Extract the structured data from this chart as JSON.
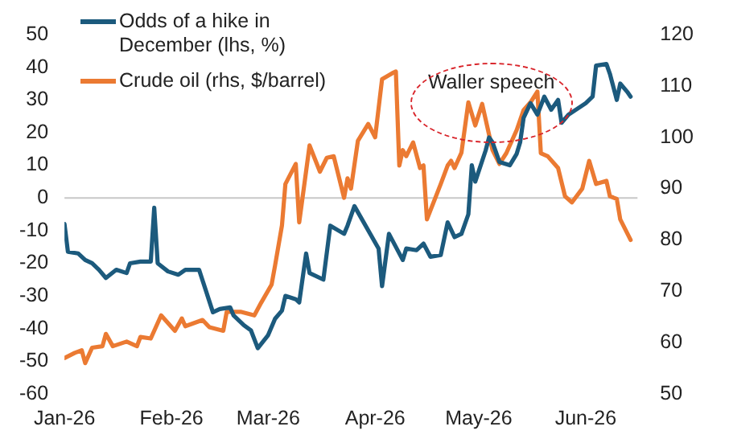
{
  "chart_data": {
    "type": "line",
    "series": [
      {
        "name": "Odds of a hike in December (lhs, %)",
        "color": "#1c5a7d",
        "axis": "y",
        "x": [
          "2026-01-01",
          "2026-01-02",
          "2026-01-05",
          "2026-01-07",
          "2026-01-09",
          "2026-01-11",
          "2026-01-13",
          "2026-01-16",
          "2026-01-19",
          "2026-01-20",
          "2026-01-23",
          "2026-01-26",
          "2026-01-27",
          "2026-01-28",
          "2026-01-31",
          "2026-02-03",
          "2026-02-05",
          "2026-02-09",
          "2026-02-13",
          "2026-02-15",
          "2026-02-18",
          "2026-02-19",
          "2026-02-22",
          "2026-02-24",
          "2026-02-26",
          "2026-03-01",
          "2026-03-03",
          "2026-03-05",
          "2026-03-06",
          "2026-03-09",
          "2026-03-10",
          "2026-03-12",
          "2026-03-13",
          "2026-03-17",
          "2026-03-19",
          "2026-03-23",
          "2026-03-24",
          "2026-03-26",
          "2026-04-02",
          "2026-04-03",
          "2026-04-05",
          "2026-04-09",
          "2026-04-10",
          "2026-04-13",
          "2026-04-15",
          "2026-04-17",
          "2026-04-20",
          "2026-04-22",
          "2026-04-24",
          "2026-04-26",
          "2026-04-28",
          "2026-04-29",
          "2026-04-30",
          "2026-05-03",
          "2026-05-04",
          "2026-05-05",
          "2026-05-07",
          "2026-05-10",
          "2026-05-12",
          "2026-05-13",
          "2026-05-14",
          "2026-05-16",
          "2026-05-18",
          "2026-05-20",
          "2026-05-22",
          "2026-05-24",
          "2026-05-25",
          "2026-05-27",
          "2026-06-01",
          "2026-06-03",
          "2026-06-04",
          "2026-06-07",
          "2026-06-08",
          "2026-06-10",
          "2026-06-11",
          "2026-06-13",
          "2026-06-14"
        ],
        "values": [
          -8,
          -16.5,
          -17,
          -19,
          -20,
          -22,
          -24.5,
          -22,
          -23,
          -20,
          -19.5,
          -19.5,
          -3,
          -20,
          -22.5,
          -23.5,
          -22,
          -22,
          -35,
          -34,
          -33.5,
          -36,
          -39,
          -40.5,
          -46,
          -42,
          -37,
          -34.5,
          -30,
          -31,
          -32,
          -17,
          -23,
          -25,
          -8.5,
          -11,
          -8.5,
          -2.5,
          -15.5,
          -27,
          -11,
          -19,
          -15.5,
          -16,
          -14,
          -18,
          -17.5,
          -7.5,
          -12,
          -11,
          -5,
          10,
          5,
          14.5,
          18.5,
          17,
          11,
          10,
          13.5,
          17,
          24.5,
          29,
          25.5,
          31,
          27,
          30,
          23,
          25.5,
          29,
          31,
          40.5,
          41,
          38,
          30,
          35,
          32.5,
          31
        ]
      },
      {
        "name": "Crude oil (rhs, $/barrel)",
        "color": "#eb7a32",
        "axis": "y2",
        "x": [
          "2026-01-01",
          "2026-01-04",
          "2026-01-06",
          "2026-01-07",
          "2026-01-09",
          "2026-01-12",
          "2026-01-13",
          "2026-01-15",
          "2026-01-19",
          "2026-01-22",
          "2026-01-23",
          "2026-01-26",
          "2026-01-29",
          "2026-02-02",
          "2026-02-04",
          "2026-02-05",
          "2026-02-10",
          "2026-02-12",
          "2026-02-16",
          "2026-02-17",
          "2026-02-21",
          "2026-02-25",
          "2026-02-27",
          "2026-03-02",
          "2026-03-03",
          "2026-03-05",
          "2026-03-06",
          "2026-03-09",
          "2026-03-10",
          "2026-03-13",
          "2026-03-16",
          "2026-03-18",
          "2026-03-20",
          "2026-03-23",
          "2026-03-24",
          "2026-03-25",
          "2026-03-27",
          "2026-03-30",
          "2026-04-01",
          "2026-04-03",
          "2026-04-06",
          "2026-04-07",
          "2026-04-08",
          "2026-04-09",
          "2026-04-10",
          "2026-04-12",
          "2026-04-14",
          "2026-04-15",
          "2026-04-16",
          "2026-04-20",
          "2026-04-22",
          "2026-04-23",
          "2026-04-24",
          "2026-04-26",
          "2026-04-28",
          "2026-04-30",
          "2026-05-02",
          "2026-05-05",
          "2026-05-07",
          "2026-05-09",
          "2026-05-12",
          "2026-05-14",
          "2026-05-16",
          "2026-05-18",
          "2026-05-19",
          "2026-05-21",
          "2026-05-24",
          "2026-05-26",
          "2026-05-28",
          "2026-05-31",
          "2026-06-02",
          "2026-06-04",
          "2026-06-07",
          "2026-06-08",
          "2026-06-10",
          "2026-06-11",
          "2026-06-14"
        ],
        "values": [
          57,
          58,
          58.5,
          56,
          59,
          59.3,
          61.7,
          59.3,
          60.2,
          59.3,
          61.1,
          60.8,
          65.3,
          62.3,
          64.7,
          63.2,
          64.4,
          63,
          62.3,
          66,
          66,
          65.3,
          67.8,
          71.3,
          75,
          82.8,
          90.9,
          94.8,
          83.4,
          98.4,
          93.3,
          96,
          96.3,
          88.2,
          92,
          90,
          99.3,
          102.6,
          100,
          111.3,
          112.5,
          112.8,
          94.5,
          97.5,
          96.3,
          99,
          94,
          94.5,
          84,
          90.9,
          94.5,
          95.4,
          94,
          97,
          106.8,
          102.3,
          106.5,
          97.5,
          94.8,
          96.9,
          101.4,
          105.3,
          106.8,
          108.9,
          96.9,
          96.3,
          94,
          88.5,
          87.3,
          90,
          95.4,
          90.9,
          91.5,
          88.5,
          88,
          84,
          80
        ]
      }
    ],
    "xlim": [
      "2026-01-01",
      "2026-06-16"
    ],
    "xticks": [
      {
        "value": "2026-01-01",
        "label": "Jan-26"
      },
      {
        "value": "2026-02-01",
        "label": "Feb-26"
      },
      {
        "value": "2026-03-01",
        "label": "Mar-26"
      },
      {
        "value": "2026-04-01",
        "label": "Apr-26"
      },
      {
        "value": "2026-05-01",
        "label": "May-26"
      },
      {
        "value": "2026-06-01",
        "label": "Jun-26"
      }
    ],
    "ylim": [
      -60,
      50
    ],
    "yticks": [
      -60,
      -50,
      -40,
      -30,
      -20,
      -10,
      0,
      10,
      20,
      30,
      40,
      50
    ],
    "y2lim": [
      50,
      120
    ],
    "y2ticks": [
      50,
      60,
      70,
      80,
      90,
      100,
      110,
      120
    ],
    "ref_lines": [
      {
        "axis": "y",
        "value": 0,
        "color": "#c8c8c8"
      }
    ],
    "annotations": [
      "Waller speech"
    ],
    "legend": "top left",
    "grid": false,
    "marker": "none",
    "line_style": "solid"
  }
}
